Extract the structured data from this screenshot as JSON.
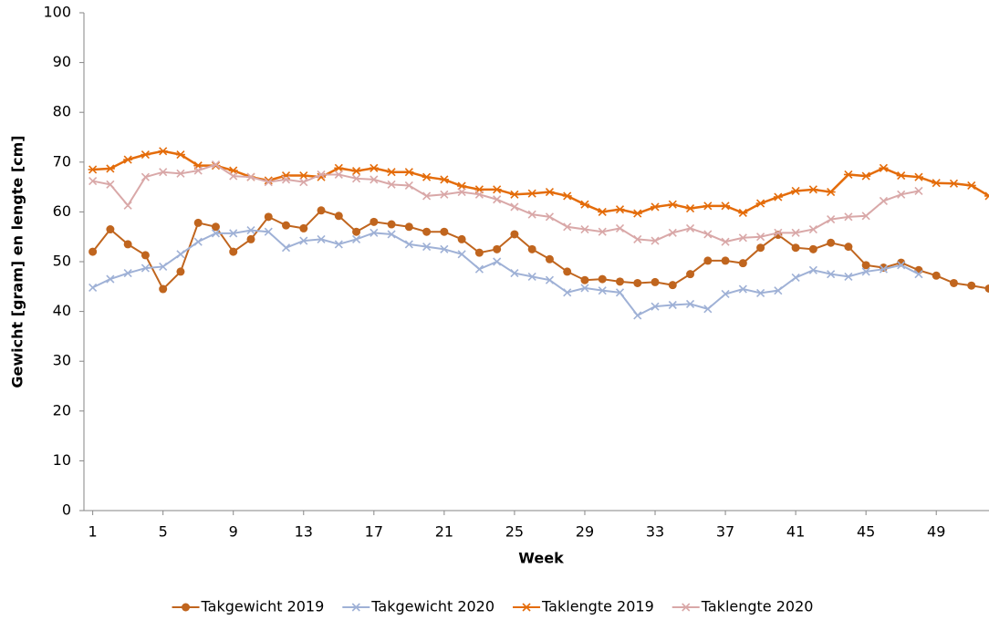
{
  "chart_data": {
    "type": "line",
    "x_label": "Week",
    "y_label": "Gewicht [gram] en lengte [cm]",
    "x": [
      1,
      2,
      3,
      4,
      5,
      6,
      7,
      8,
      9,
      10,
      11,
      12,
      13,
      14,
      15,
      16,
      17,
      18,
      19,
      20,
      21,
      22,
      23,
      24,
      25,
      26,
      27,
      28,
      29,
      30,
      31,
      32,
      33,
      34,
      35,
      36,
      37,
      38,
      39,
      40,
      41,
      42,
      43,
      44,
      45,
      46,
      47,
      48,
      49,
      50,
      51,
      52
    ],
    "xlim": [
      0.5,
      52
    ],
    "xticks": [
      1,
      5,
      9,
      13,
      17,
      21,
      25,
      29,
      33,
      37,
      41,
      45,
      49
    ],
    "ylim": [
      0,
      100
    ],
    "yticks": [
      0,
      10,
      20,
      30,
      40,
      50,
      60,
      70,
      80,
      90,
      100
    ],
    "grid": false,
    "legend": "bottom",
    "series": [
      {
        "name": "Takgewicht 2019",
        "color": "#c0651e",
        "marker": "circle",
        "values": [
          52,
          56.5,
          53.5,
          51.3,
          44.5,
          48,
          57.8,
          57,
          52,
          54.5,
          59,
          57.3,
          56.7,
          60.3,
          59.2,
          56,
          58,
          57.5,
          57,
          56,
          56,
          54.5,
          51.8,
          52.5,
          55.5,
          52.5,
          50.5,
          48,
          46.3,
          46.5,
          46,
          45.7,
          45.9,
          45.3,
          47.5,
          50.2,
          50.2,
          49.7,
          52.8,
          55.4,
          52.8,
          52.5,
          53.8,
          53,
          49.3,
          48.8,
          49.8,
          48.3,
          47.2,
          45.7,
          45.2,
          44.6
        ]
      },
      {
        "name": "Takgewicht 2020",
        "color": "#9fb1d6",
        "marker": "x",
        "values": [
          44.8,
          46.5,
          47.7,
          48.7,
          49,
          51.5,
          54,
          55.7,
          55.7,
          56.3,
          56,
          52.8,
          54.2,
          54.5,
          53.5,
          54.5,
          55.8,
          55.5,
          53.5,
          53,
          52.5,
          51.5,
          48.5,
          50,
          47.7,
          47,
          46.3,
          43.8,
          44.7,
          44.2,
          43.8,
          39.2,
          41,
          41.3,
          41.5,
          40.5,
          43.5,
          44.5,
          43.7,
          44.2,
          46.8,
          48.3,
          47.5,
          47,
          48,
          48.5,
          49.3,
          47.5,
          null,
          null,
          null,
          null
        ]
      },
      {
        "name": "Taklengte 2019",
        "color": "#e46c0a",
        "marker": "star",
        "values": [
          68.5,
          68.7,
          70.5,
          71.5,
          72.2,
          71.5,
          69.3,
          69.3,
          68.3,
          67,
          66.3,
          67.3,
          67.3,
          67,
          68.8,
          68.2,
          68.8,
          68,
          68,
          67,
          66.5,
          65.2,
          64.5,
          64.5,
          63.5,
          63.7,
          64,
          63.2,
          61.5,
          60,
          60.5,
          59.7,
          61,
          61.5,
          60.7,
          61.2,
          61.2,
          59.8,
          61.7,
          63,
          64.2,
          64.5,
          64,
          67.5,
          67.2,
          68.8,
          67.3,
          67,
          65.8,
          65.7,
          65.3,
          63.2
        ]
      },
      {
        "name": "Taklengte 2020",
        "color": "#d9a8a8",
        "marker": "x",
        "values": [
          66.2,
          65.5,
          61.3,
          67,
          68,
          67.7,
          68.3,
          69.5,
          67.2,
          67,
          66,
          66.5,
          66,
          67.5,
          67.5,
          66.7,
          66.5,
          65.5,
          65.3,
          63.2,
          63.5,
          64,
          63.5,
          62.5,
          61,
          59.5,
          59,
          57,
          56.5,
          56,
          56.7,
          54.5,
          54.2,
          55.8,
          56.7,
          55.5,
          54,
          54.8,
          55,
          55.8,
          55.8,
          56.5,
          58.5,
          59,
          59.2,
          62.2,
          63.5,
          64.2,
          null,
          null,
          null,
          null
        ]
      }
    ]
  }
}
